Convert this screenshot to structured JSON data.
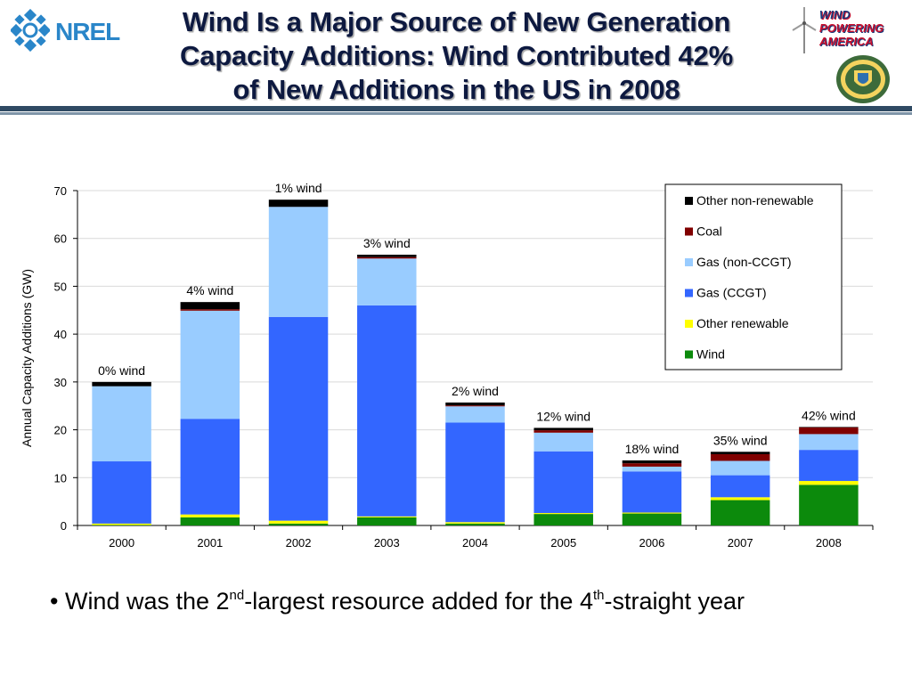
{
  "slide": {
    "title_lines": [
      "Wind Is a Major Source of New Generation",
      "Capacity Additions:  Wind Contributed 42%",
      "of New Additions in the US in 2008"
    ],
    "logos": {
      "nrel": "NREL",
      "wind_powering_america": [
        "WIND",
        "POWERING",
        "AMERICA"
      ]
    },
    "bullet": {
      "marker": "•",
      "text1": " Wind was the 2",
      "sup1": "nd",
      "text2": "-largest resource added for the 4",
      "sup2": "th",
      "text3": "-straight year"
    },
    "colors": {
      "title": "#0d1940",
      "rule_dark": "#2f4a63",
      "rule_light": "#7f95a8"
    }
  },
  "chart_data": {
    "type": "bar",
    "stacked": true,
    "categories": [
      "2000",
      "2001",
      "2002",
      "2003",
      "2004",
      "2005",
      "2006",
      "2007",
      "2008"
    ],
    "series": [
      {
        "name": "Wind",
        "color": "#0c8a0c",
        "values": [
          0.1,
          1.7,
          0.4,
          1.7,
          0.4,
          2.4,
          2.5,
          5.3,
          8.5
        ]
      },
      {
        "name": "Other renewable",
        "color": "#ffff00",
        "values": [
          0.3,
          0.6,
          0.6,
          0.2,
          0.3,
          0.2,
          0.2,
          0.6,
          0.8
        ]
      },
      {
        "name": "Gas (CCGT)",
        "color": "#3366ff",
        "values": [
          13.0,
          20.0,
          42.6,
          44.1,
          20.8,
          12.9,
          8.6,
          4.6,
          6.5
        ]
      },
      {
        "name": "Gas (non-CCGT)",
        "color": "#99ccff",
        "values": [
          15.7,
          22.6,
          23.0,
          9.8,
          3.4,
          3.9,
          1.0,
          3.0,
          3.3
        ]
      },
      {
        "name": "Coal",
        "color": "#800000",
        "values": [
          0.0,
          0.3,
          0.0,
          0.3,
          0.2,
          0.5,
          0.7,
          1.4,
          1.4
        ]
      },
      {
        "name": "Other non-renewable",
        "color": "#000000",
        "values": [
          0.9,
          1.5,
          1.5,
          0.5,
          0.6,
          0.5,
          0.6,
          0.5,
          0.1
        ]
      }
    ],
    "annotations": [
      "0% wind",
      "4% wind",
      "1% wind",
      "3% wind",
      "2% wind",
      "12% wind",
      "18% wind",
      "35% wind",
      "42% wind"
    ],
    "ylabel": "Annual Capacity Additions (GW)",
    "xlabel": "",
    "ylim": [
      0,
      70
    ],
    "yticks": [
      0,
      10,
      20,
      30,
      40,
      50,
      60,
      70
    ],
    "grid": true,
    "legend_position": "top-right",
    "legend_order": [
      "Other non-renewable",
      "Coal",
      "Gas (non-CCGT)",
      "Gas (CCGT)",
      "Other renewable",
      "Wind"
    ]
  }
}
